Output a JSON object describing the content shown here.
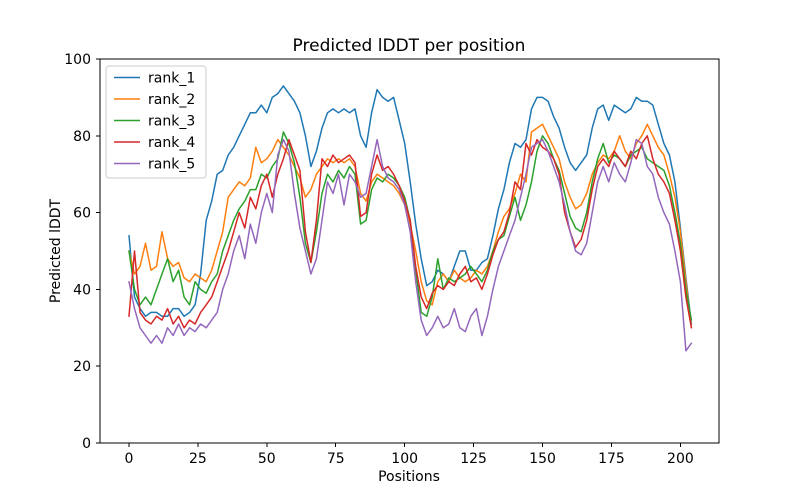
{
  "figure": {
    "background": "#ffffff",
    "title": "Predicted lDDT per position",
    "xlabel": "Positions",
    "ylabel": "Predicted lDDT"
  },
  "chart_data": {
    "type": "line",
    "title": "Predicted lDDT per position",
    "xlabel": "Positions",
    "ylabel": "Predicted lDDT",
    "xlim": [
      -10.5,
      214
    ],
    "ylim": [
      0,
      100
    ],
    "x_ticks": [
      0,
      25,
      50,
      75,
      100,
      125,
      150,
      175,
      200
    ],
    "y_ticks": [
      0,
      20,
      40,
      60,
      80,
      100
    ],
    "grid": false,
    "legend_position": "upper left",
    "line_width": 1.5,
    "x_start": 0,
    "x_step": 2,
    "series": [
      {
        "name": "rank_1",
        "color": "#1f77b4",
        "values": [
          54,
          38,
          35,
          33,
          34,
          34,
          33,
          33,
          35,
          35,
          33,
          34,
          36,
          44,
          58,
          63,
          70,
          71,
          75,
          77,
          80,
          83,
          86,
          86,
          88,
          86,
          90,
          91,
          93,
          91,
          89,
          86,
          80,
          72,
          76,
          82,
          86,
          87,
          86,
          87,
          86,
          87,
          80,
          77,
          86,
          92,
          90,
          89,
          90,
          84,
          78,
          68,
          57,
          48,
          41,
          42,
          45,
          44,
          42,
          46,
          50,
          50,
          45,
          45,
          47,
          48,
          54,
          61,
          66,
          73,
          78,
          77,
          79,
          87,
          90,
          90,
          89,
          85,
          82,
          77,
          73,
          71,
          73,
          75,
          82,
          87,
          88,
          84,
          88,
          87,
          86,
          87,
          90,
          89,
          89,
          88,
          83,
          78,
          75,
          68,
          56,
          43,
          31
        ]
      },
      {
        "name": "rank_2",
        "color": "#ff7f0e",
        "values": [
          50,
          44,
          46,
          52,
          45,
          46,
          55,
          48,
          46,
          47,
          43,
          42,
          44,
          43,
          42,
          45,
          50,
          55,
          64,
          66,
          68,
          67,
          69,
          77,
          73,
          74,
          76,
          79,
          77,
          75,
          72,
          69,
          64,
          66,
          70,
          72,
          74,
          73,
          74,
          73,
          74,
          72,
          65,
          63,
          68,
          70,
          69,
          68,
          67,
          65,
          62,
          57,
          50,
          42,
          37,
          36,
          42,
          44,
          42,
          45,
          43,
          42,
          43,
          45,
          44,
          46,
          50,
          55,
          59,
          61,
          65,
          70,
          68,
          81,
          82,
          83,
          80,
          77,
          74,
          68,
          64,
          61,
          62,
          65,
          70,
          73,
          75,
          74,
          76,
          80,
          76,
          74,
          78,
          80,
          83,
          80,
          77,
          75,
          70,
          64,
          55,
          42,
          30
        ]
      },
      {
        "name": "rank_3",
        "color": "#2ca02c",
        "values": [
          50,
          40,
          36,
          38,
          36,
          40,
          44,
          48,
          42,
          45,
          38,
          36,
          42,
          40,
          39,
          42,
          44,
          50,
          54,
          58,
          61,
          63,
          66,
          66,
          70,
          69,
          72,
          74,
          81,
          78,
          73,
          64,
          52,
          47,
          55,
          65,
          70,
          68,
          71,
          69,
          72,
          70,
          57,
          58,
          66,
          69,
          68,
          70,
          69,
          67,
          64,
          58,
          45,
          34,
          33,
          38,
          48,
          40,
          43,
          42,
          43,
          44,
          46,
          44,
          42,
          45,
          50,
          53,
          54,
          59,
          64,
          58,
          62,
          68,
          76,
          80,
          78,
          74,
          71,
          65,
          59,
          56,
          55,
          60,
          68,
          74,
          78,
          73,
          75,
          74,
          72,
          75,
          76,
          77,
          74,
          73,
          72,
          71,
          67,
          60,
          52,
          40,
          32
        ]
      },
      {
        "name": "rank_4",
        "color": "#d62728",
        "values": [
          33,
          50,
          34,
          32,
          31,
          33,
          32,
          35,
          31,
          33,
          30,
          32,
          31,
          34,
          36,
          38,
          42,
          46,
          50,
          55,
          60,
          56,
          64,
          61,
          67,
          70,
          64,
          70,
          74,
          79,
          75,
          71,
          55,
          47,
          58,
          74,
          72,
          75,
          73,
          74,
          75,
          73,
          59,
          60,
          70,
          75,
          71,
          72,
          70,
          67,
          63,
          58,
          46,
          38,
          35,
          39,
          41,
          40,
          42,
          41,
          44,
          46,
          42,
          43,
          40,
          44,
          49,
          53,
          55,
          60,
          68,
          66,
          78,
          75,
          79,
          77,
          76,
          74,
          70,
          60,
          55,
          51,
          53,
          58,
          66,
          72,
          74,
          72,
          76,
          74,
          72,
          76,
          74,
          78,
          80,
          74,
          70,
          68,
          65,
          58,
          50,
          38,
          30
        ]
      },
      {
        "name": "rank_5",
        "color": "#9467bd",
        "values": [
          42,
          35,
          30,
          28,
          26,
          28,
          26,
          30,
          28,
          31,
          28,
          30,
          29,
          31,
          30,
          32,
          34,
          40,
          44,
          50,
          54,
          48,
          57,
          52,
          60,
          65,
          60,
          75,
          79,
          76,
          65,
          56,
          50,
          44,
          48,
          58,
          68,
          65,
          70,
          62,
          70,
          68,
          64,
          65,
          72,
          79,
          72,
          69,
          68,
          66,
          62,
          55,
          42,
          32,
          28,
          30,
          33,
          30,
          31,
          35,
          30,
          29,
          33,
          35,
          28,
          33,
          40,
          46,
          50,
          54,
          58,
          64,
          70,
          77,
          78,
          79,
          76,
          72,
          68,
          62,
          55,
          50,
          49,
          52,
          60,
          68,
          72,
          68,
          73,
          70,
          68,
          73,
          79,
          78,
          72,
          70,
          64,
          60,
          57,
          50,
          42,
          24,
          26
        ]
      }
    ]
  }
}
